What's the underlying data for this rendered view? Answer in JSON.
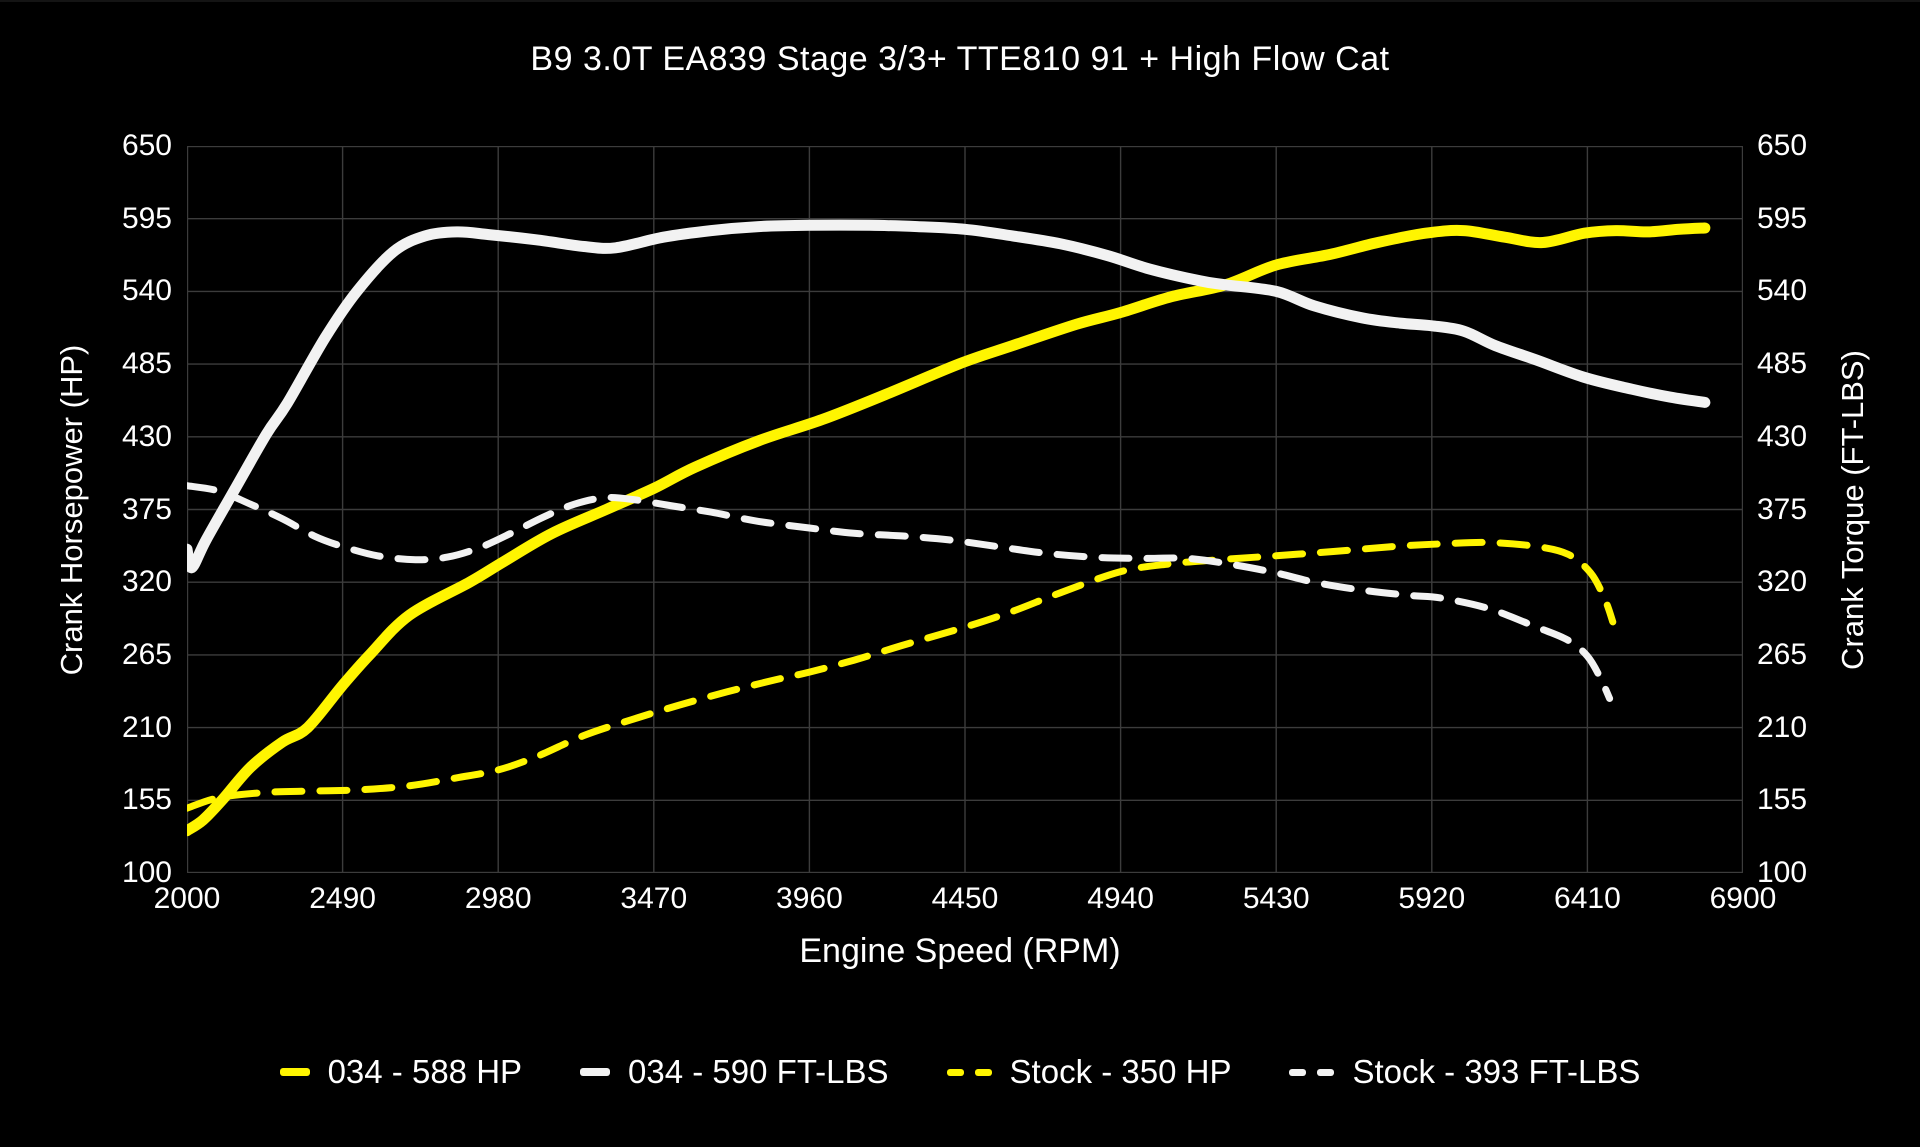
{
  "chart": {
    "title": "B9 3.0T EA839 Stage 3/3+ TTE810 91 + High Flow Cat",
    "xlabel": "Engine Speed (RPM)",
    "ylabel_left": "Crank Horsepower (HP)",
    "ylabel_right": "Crank Torque (FT-LBS)"
  },
  "chart_data": {
    "type": "line",
    "title": "B9 3.0T EA839 Stage 3/3+ TTE810 91 + High Flow Cat",
    "xlabel": "Engine Speed (RPM)",
    "ylabel_left": "Crank Horsepower (HP)",
    "ylabel_right": "Crank Torque (FT-LBS)",
    "xlim": [
      2000,
      6900
    ],
    "ylim": [
      100,
      650
    ],
    "x_ticks": [
      2000,
      2490,
      2980,
      3470,
      3960,
      4450,
      4940,
      5430,
      5920,
      6410,
      6900
    ],
    "y_ticks": [
      100,
      155,
      210,
      265,
      320,
      375,
      430,
      485,
      540,
      595,
      650
    ],
    "grid": true,
    "background_color": "#000000",
    "grid_color": "#3c3c3c",
    "legend_position": "bottom",
    "series": [
      {
        "name": "034 - 588 HP",
        "color": "#fff500",
        "style": "solid",
        "width": 11,
        "axis": "left",
        "legend_marker": "single",
        "points": [
          [
            2000,
            132
          ],
          [
            2050,
            140
          ],
          [
            2110,
            155
          ],
          [
            2200,
            180
          ],
          [
            2300,
            199
          ],
          [
            2380,
            210
          ],
          [
            2490,
            242
          ],
          [
            2575,
            265
          ],
          [
            2700,
            295
          ],
          [
            2890,
            320
          ],
          [
            3000,
            336
          ],
          [
            3150,
            357
          ],
          [
            3320,
            375
          ],
          [
            3470,
            391
          ],
          [
            3600,
            407
          ],
          [
            3800,
            427
          ],
          [
            4000,
            443
          ],
          [
            4200,
            462
          ],
          [
            4430,
            485
          ],
          [
            4600,
            499
          ],
          [
            4800,
            515
          ],
          [
            4940,
            524
          ],
          [
            5100,
            536
          ],
          [
            5270,
            545
          ],
          [
            5430,
            560
          ],
          [
            5600,
            568
          ],
          [
            5750,
            577
          ],
          [
            5900,
            584
          ],
          [
            6020,
            586
          ],
          [
            6150,
            581
          ],
          [
            6270,
            577
          ],
          [
            6400,
            584
          ],
          [
            6500,
            586
          ],
          [
            6600,
            585
          ],
          [
            6700,
            587
          ],
          [
            6780,
            588
          ]
        ]
      },
      {
        "name": "034 - 590 FT-LBS",
        "color": "#f2f2f2",
        "style": "solid",
        "width": 11,
        "axis": "right",
        "legend_marker": "single",
        "points": [
          [
            2000,
            345
          ],
          [
            2015,
            331
          ],
          [
            2060,
            352
          ],
          [
            2150,
            390
          ],
          [
            2250,
            432
          ],
          [
            2315,
            455
          ],
          [
            2435,
            505
          ],
          [
            2535,
            540
          ],
          [
            2650,
            570
          ],
          [
            2750,
            582
          ],
          [
            2850,
            585
          ],
          [
            2950,
            583
          ],
          [
            3100,
            579
          ],
          [
            3250,
            574
          ],
          [
            3350,
            573
          ],
          [
            3500,
            581
          ],
          [
            3650,
            586
          ],
          [
            3800,
            589
          ],
          [
            3960,
            590
          ],
          [
            4150,
            590
          ],
          [
            4300,
            589
          ],
          [
            4450,
            587
          ],
          [
            4600,
            582
          ],
          [
            4750,
            576
          ],
          [
            4900,
            567
          ],
          [
            5030,
            557
          ],
          [
            5190,
            548
          ],
          [
            5270,
            545
          ],
          [
            5430,
            540
          ],
          [
            5550,
            529
          ],
          [
            5700,
            520
          ],
          [
            5820,
            516
          ],
          [
            5920,
            514
          ],
          [
            6020,
            510
          ],
          [
            6120,
            499
          ],
          [
            6250,
            488
          ],
          [
            6400,
            475
          ],
          [
            6550,
            466
          ],
          [
            6670,
            460
          ],
          [
            6780,
            456
          ]
        ]
      },
      {
        "name": "Stock - 350 HP",
        "color": "#fff500",
        "style": "dashed",
        "width": 7,
        "axis": "left",
        "legend_marker": "double",
        "points": [
          [
            2000,
            149
          ],
          [
            2100,
            157
          ],
          [
            2250,
            161
          ],
          [
            2400,
            162
          ],
          [
            2550,
            163
          ],
          [
            2700,
            166
          ],
          [
            2850,
            172
          ],
          [
            2980,
            178
          ],
          [
            3100,
            188
          ],
          [
            3250,
            204
          ],
          [
            3400,
            216
          ],
          [
            3550,
            227
          ],
          [
            3700,
            237
          ],
          [
            3850,
            246
          ],
          [
            3960,
            252
          ],
          [
            4100,
            261
          ],
          [
            4250,
            272
          ],
          [
            4450,
            286
          ],
          [
            4600,
            298
          ],
          [
            4750,
            312
          ],
          [
            4940,
            328
          ],
          [
            5100,
            334
          ],
          [
            5250,
            337
          ],
          [
            5430,
            340
          ],
          [
            5600,
            343
          ],
          [
            5800,
            347
          ],
          [
            5950,
            349
          ],
          [
            6100,
            350
          ],
          [
            6250,
            347
          ],
          [
            6350,
            341
          ],
          [
            6420,
            327
          ],
          [
            6465,
            307
          ],
          [
            6490,
            290
          ]
        ]
      },
      {
        "name": "Stock - 393 FT-LBS",
        "color": "#f2f2f2",
        "style": "dashed",
        "width": 7,
        "axis": "right",
        "legend_marker": "double",
        "points": [
          [
            2000,
            393
          ],
          [
            2100,
            389
          ],
          [
            2200,
            379
          ],
          [
            2300,
            368
          ],
          [
            2400,
            355
          ],
          [
            2490,
            347
          ],
          [
            2600,
            340
          ],
          [
            2720,
            337
          ],
          [
            2820,
            339
          ],
          [
            2920,
            346
          ],
          [
            3020,
            357
          ],
          [
            3120,
            369
          ],
          [
            3220,
            379
          ],
          [
            3320,
            384
          ],
          [
            3420,
            382
          ],
          [
            3520,
            378
          ],
          [
            3650,
            373
          ],
          [
            3800,
            366
          ],
          [
            3960,
            361
          ],
          [
            4100,
            357
          ],
          [
            4250,
            355
          ],
          [
            4400,
            352
          ],
          [
            4550,
            347
          ],
          [
            4700,
            342
          ],
          [
            4850,
            339
          ],
          [
            5000,
            338
          ],
          [
            5150,
            338
          ],
          [
            5300,
            333
          ],
          [
            5430,
            327
          ],
          [
            5550,
            320
          ],
          [
            5700,
            314
          ],
          [
            5850,
            310
          ],
          [
            5950,
            308
          ],
          [
            6100,
            300
          ],
          [
            6250,
            286
          ],
          [
            6350,
            276
          ],
          [
            6410,
            264
          ],
          [
            6450,
            248
          ],
          [
            6480,
            232
          ]
        ]
      }
    ]
  }
}
